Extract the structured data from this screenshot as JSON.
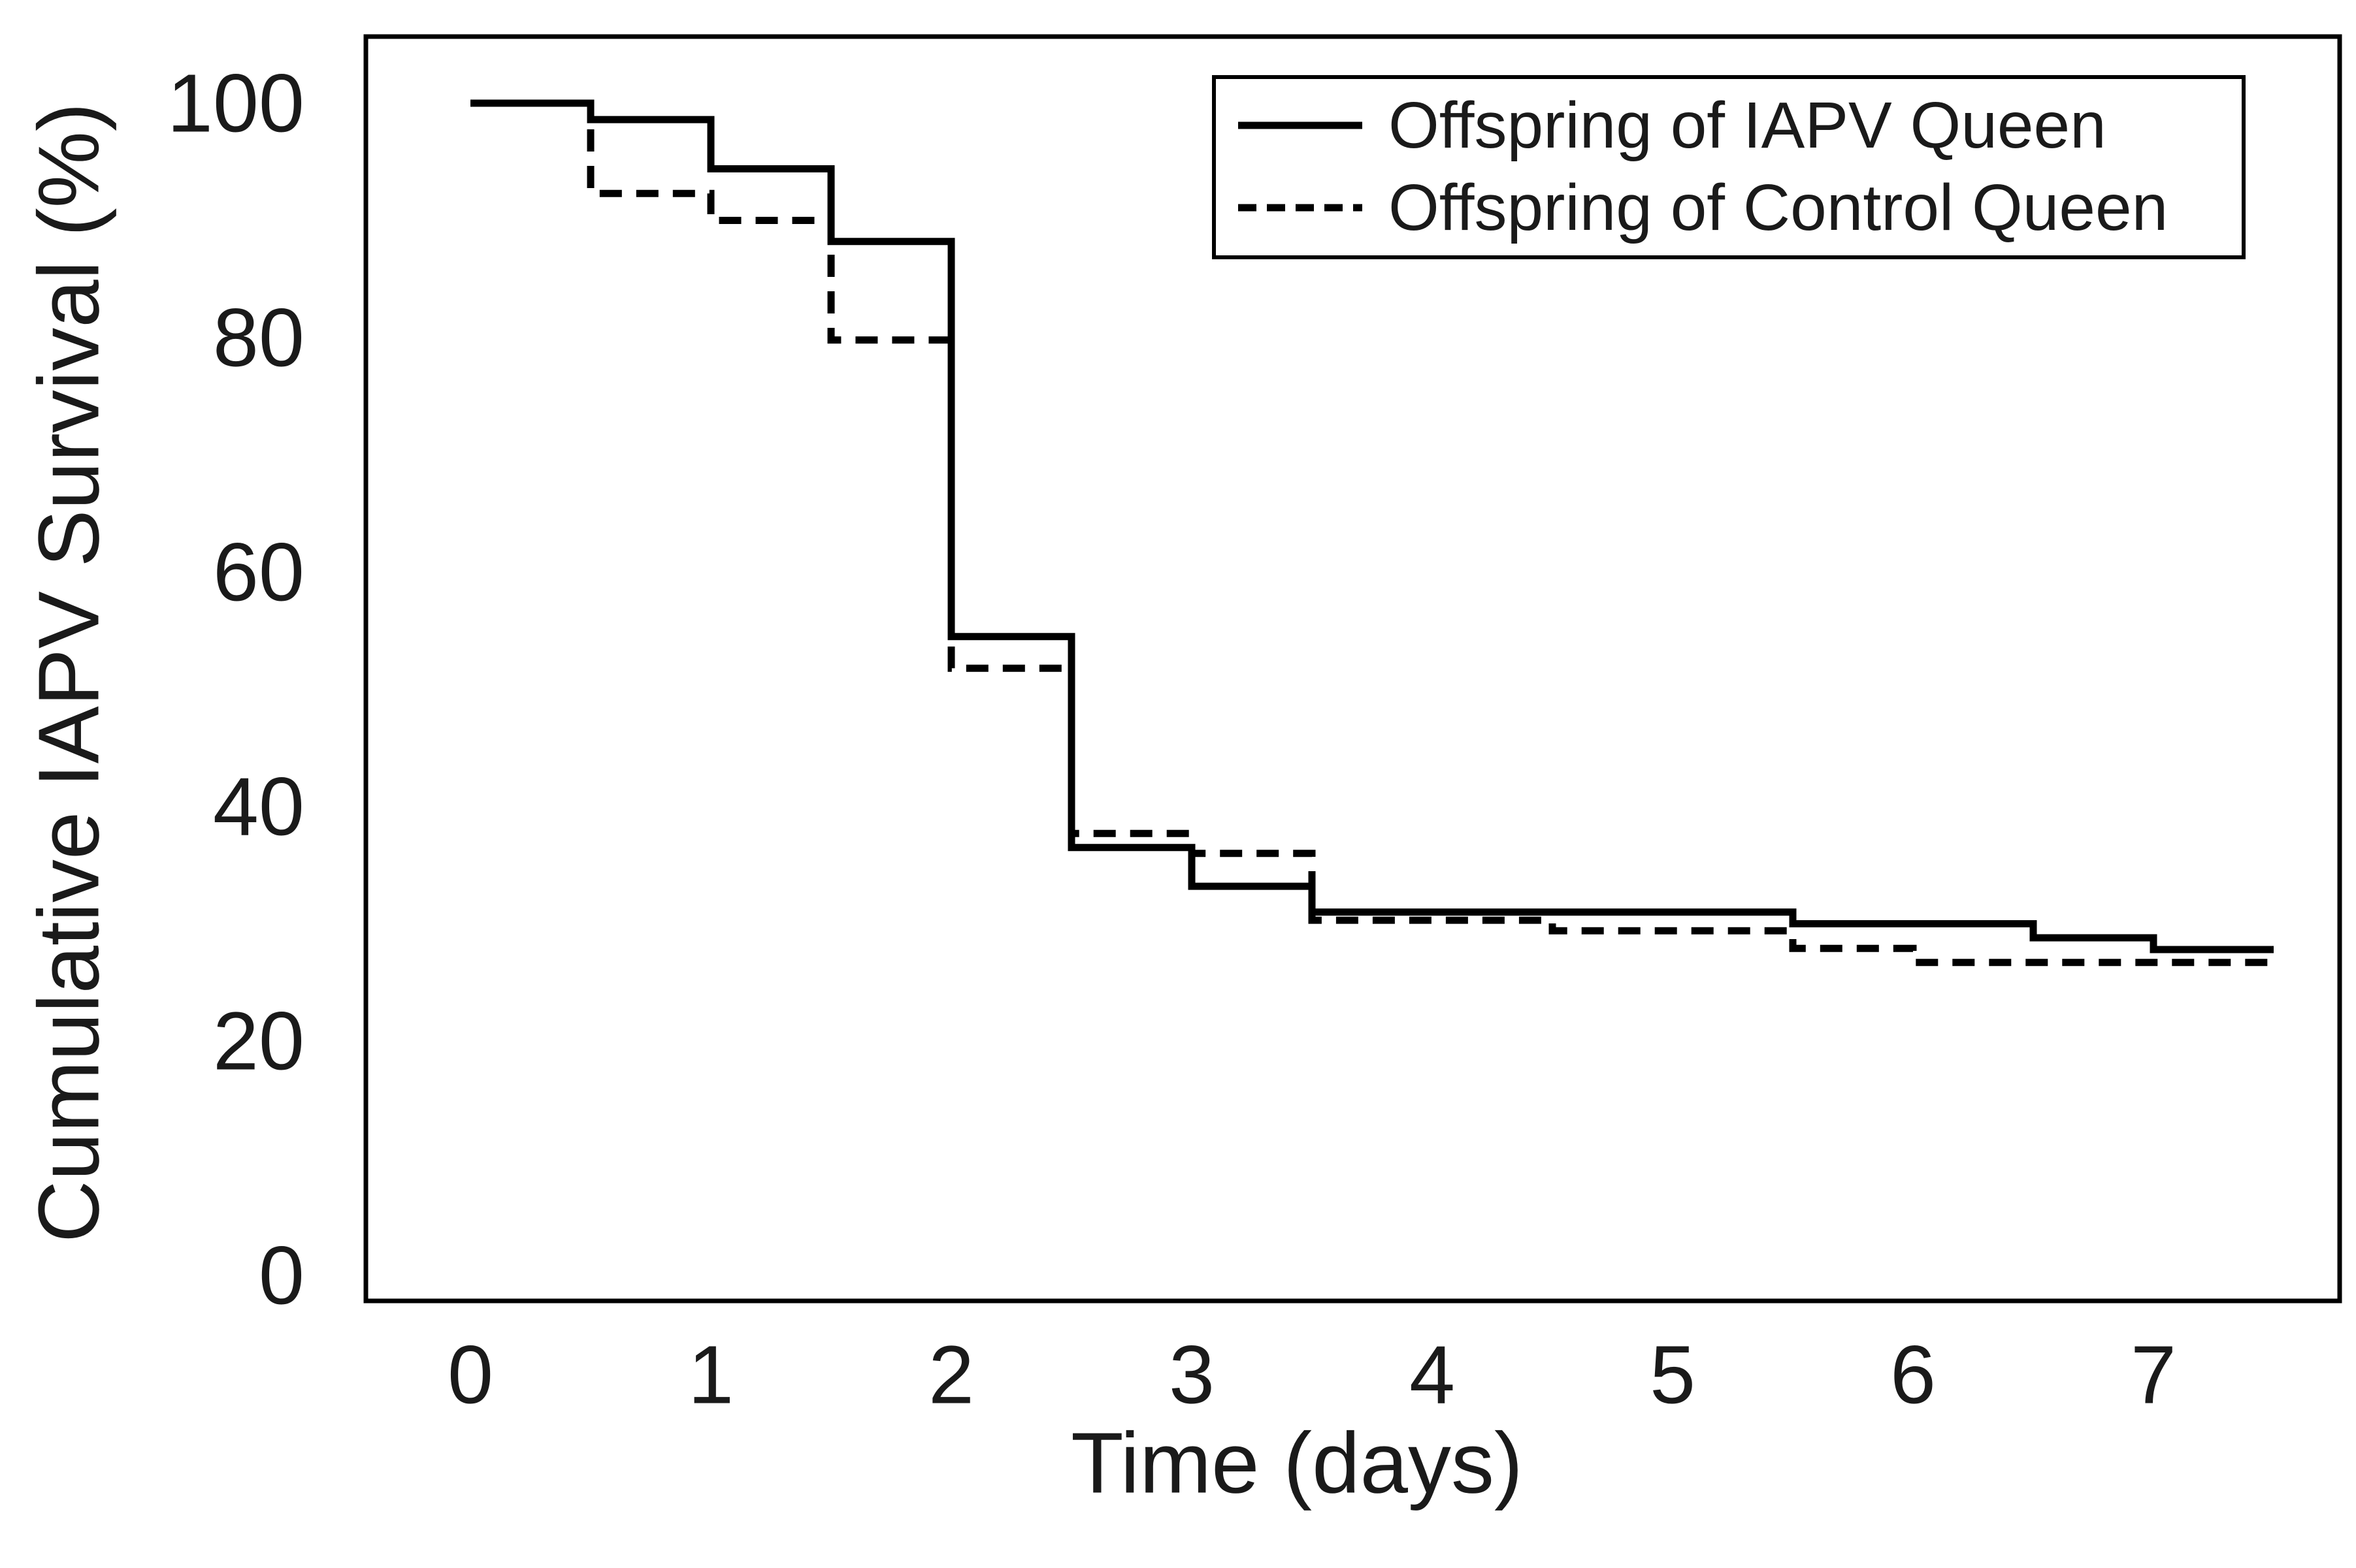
{
  "chart_data": {
    "type": "line",
    "subtype": "kaplan-meier-step-survival",
    "title": "",
    "xlabel": "Time (days)",
    "ylabel": "Cumulative IAPV Survival (%)",
    "x_ticks": [
      0,
      1,
      2,
      3,
      4,
      5,
      6,
      7
    ],
    "y_ticks": [
      100,
      80,
      60,
      40,
      20,
      0
    ],
    "xlim": [
      -0.45,
      7.8
    ],
    "ylim": [
      -2.5,
      105.5
    ],
    "grid": false,
    "legend_position": "top-right",
    "background_color": "#ffffff",
    "line_color": "#000000",
    "series": [
      {
        "name": "Offspring of IAPV Queen",
        "line_style": "solid",
        "end_t": 7.5,
        "points": [
          {
            "t": 0,
            "v": 100
          },
          {
            "t": 0.5,
            "v": 98.6
          },
          {
            "t": 1,
            "v": 94.4
          },
          {
            "t": 1.5,
            "v": 88.2
          },
          {
            "t": 2,
            "v": 54.5
          },
          {
            "t": 2.5,
            "v": 36.5
          },
          {
            "t": 3,
            "v": 33.2
          },
          {
            "t": 3.5,
            "v": 31.0
          },
          {
            "t": 5.5,
            "v": 30.0
          },
          {
            "t": 6.5,
            "v": 28.8
          },
          {
            "t": 7,
            "v": 27.8
          }
        ]
      },
      {
        "name": "Offspring of Control Queen",
        "line_style": "dashed",
        "end_t": 7.5,
        "points": [
          {
            "t": 0,
            "v": 100
          },
          {
            "t": 0.5,
            "v": 92.3
          },
          {
            "t": 1,
            "v": 90.0
          },
          {
            "t": 1.5,
            "v": 79.8
          },
          {
            "t": 2,
            "v": 51.8
          },
          {
            "t": 2.5,
            "v": 37.7
          },
          {
            "t": 3,
            "v": 36.0
          },
          {
            "t": 3.5,
            "v": 30.3
          },
          {
            "t": 4.5,
            "v": 29.4
          },
          {
            "t": 5.5,
            "v": 27.9
          },
          {
            "t": 6,
            "v": 26.7
          }
        ]
      }
    ]
  }
}
